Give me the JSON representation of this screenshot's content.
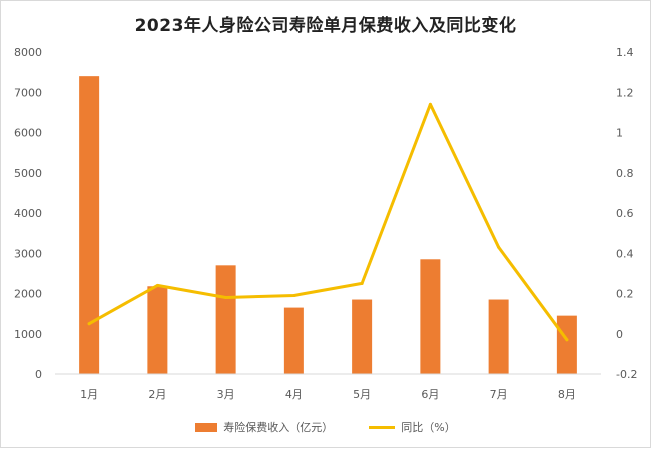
{
  "chart_data": {
    "type": "bar",
    "title": "2023年人身险公司寿险单月保费收入及同比变化",
    "categories": [
      "1月",
      "2月",
      "3月",
      "4月",
      "5月",
      "6月",
      "7月",
      "8月"
    ],
    "series": [
      {
        "name": "寿险保费收入（亿元）",
        "type": "bar",
        "axis": "left",
        "color": "#ED7D31",
        "values": [
          7400,
          2180,
          2700,
          1650,
          1850,
          2850,
          1850,
          1450
        ]
      },
      {
        "name": "同比（%）",
        "type": "line",
        "axis": "right",
        "color": "#F5BD00",
        "values": [
          0.05,
          0.24,
          0.18,
          0.19,
          0.25,
          1.14,
          0.43,
          -0.03
        ]
      }
    ],
    "y_left": {
      "min": 0,
      "max": 8000,
      "step": 1000,
      "ticks": [
        "0",
        "1000",
        "2000",
        "3000",
        "4000",
        "5000",
        "6000",
        "7000",
        "8000"
      ]
    },
    "y_right": {
      "min": -0.2,
      "max": 1.4,
      "step": 0.2,
      "ticks": [
        "-0.2",
        "0",
        "0.2",
        "0.4",
        "0.6",
        "0.8",
        "1",
        "1.2",
        "1.4"
      ]
    },
    "grid": false,
    "legend_position": "bottom"
  }
}
